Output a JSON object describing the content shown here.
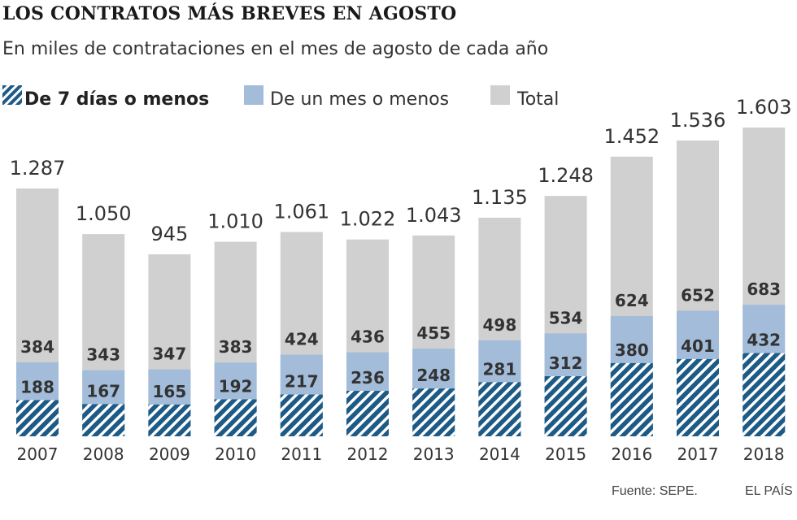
{
  "chart_data": {
    "type": "bar",
    "title": "LOS CONTRATOS MÁS BREVES EN AGOSTO",
    "subtitle": "En miles de contrataciones en el mes de agosto de cada año",
    "categories": [
      "2007",
      "2008",
      "2009",
      "2010",
      "2011",
      "2012",
      "2013",
      "2014",
      "2015",
      "2016",
      "2017",
      "2018"
    ],
    "series": [
      {
        "name": "De 7 días o menos",
        "values": [
          188,
          167,
          165,
          192,
          217,
          236,
          248,
          281,
          312,
          380,
          401,
          432
        ],
        "labels": [
          "188",
          "167",
          "165",
          "192",
          "217",
          "236",
          "248",
          "281",
          "312",
          "380",
          "401",
          "432"
        ]
      },
      {
        "name": "De un mes o menos",
        "values": [
          384,
          343,
          347,
          383,
          424,
          436,
          455,
          498,
          534,
          624,
          652,
          683
        ],
        "labels": [
          "384",
          "343",
          "347",
          "383",
          "424",
          "436",
          "455",
          "498",
          "534",
          "624",
          "652",
          "683"
        ]
      },
      {
        "name": "Total",
        "values": [
          1287,
          1050,
          945,
          1010,
          1061,
          1022,
          1043,
          1135,
          1248,
          1452,
          1536,
          1603
        ],
        "labels": [
          "1.287",
          "1.050",
          "945",
          "1.010",
          "1.061",
          "1.022",
          "1.043",
          "1.135",
          "1.248",
          "1.452",
          "1.536",
          "1.603"
        ]
      }
    ],
    "layering": "overlapping",
    "ylim": [
      0,
      1603
    ],
    "xlabel": "",
    "ylabel": "",
    "grid": false,
    "legend": "top-left",
    "source": "Fuente: SEPE.",
    "credit": "EL PAÍS"
  },
  "colors": {
    "total": "#d0d0d0",
    "month": "#a2bcd9",
    "week": "#1d5a86",
    "week_stripe_bg": "#ffffff",
    "text_dark": "#333333"
  },
  "legend": {
    "week_label": "De 7 días o menos",
    "month_label": "De un mes o menos",
    "total_label": "Total"
  }
}
